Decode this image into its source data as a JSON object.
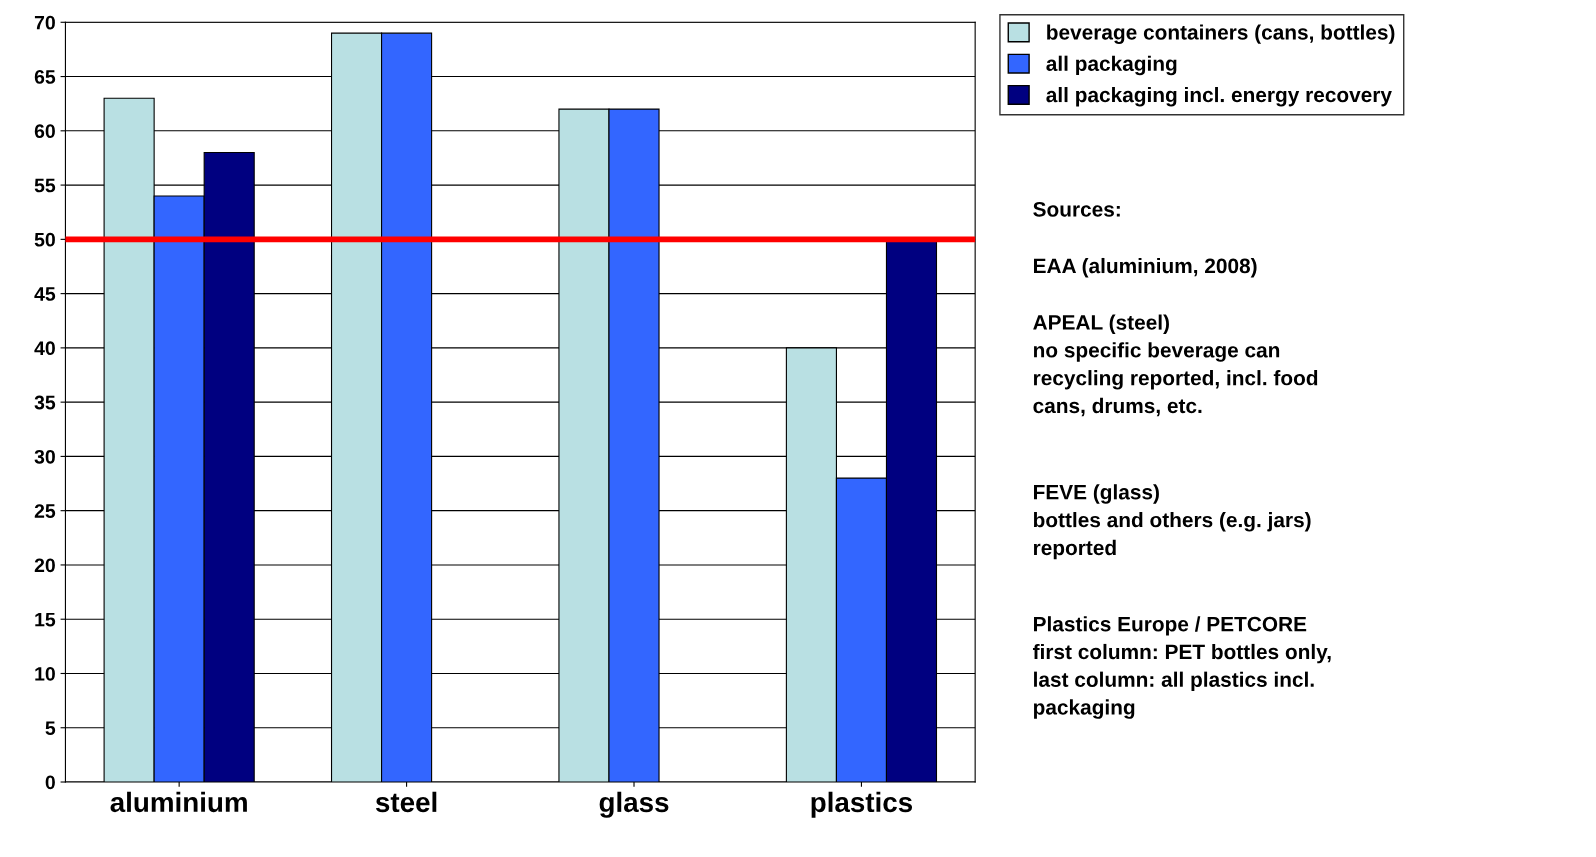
{
  "chart_data": {
    "type": "bar",
    "categories": [
      "aluminium",
      "steel",
      "glass",
      "plastics"
    ],
    "series": [
      {
        "name": "beverage containers (cans, bottles)",
        "color": "#b9e0e3",
        "values": [
          63,
          69,
          62,
          40
        ]
      },
      {
        "name": "all packaging",
        "color": "#3366ff",
        "values": [
          54,
          69,
          62,
          28
        ]
      },
      {
        "name": "all packaging incl. energy recovery",
        "color": "#000080",
        "values": [
          58,
          null,
          null,
          50
        ]
      }
    ],
    "ylim": [
      0,
      70
    ],
    "yticks": [
      0,
      5,
      10,
      15,
      20,
      25,
      30,
      35,
      40,
      45,
      50,
      55,
      60,
      65,
      70
    ],
    "grid": "y",
    "legend": "right",
    "ref_lines": [
      {
        "axis": "y",
        "value": 50,
        "color": "#ff0000"
      }
    ],
    "annotations": [
      "Sources:",
      "EAA (aluminium, 2008)",
      "APEAL (steel)\nno specific beverage can\nrecycling reported, incl. food\ncans, drums, etc.",
      "FEVE (glass)\nbottles and others (e.g. jars)\nreported",
      "Plastics Europe / PETCORE\nfirst column: PET bottles only,\nlast column: all plastics incl.\npackaging"
    ]
  }
}
